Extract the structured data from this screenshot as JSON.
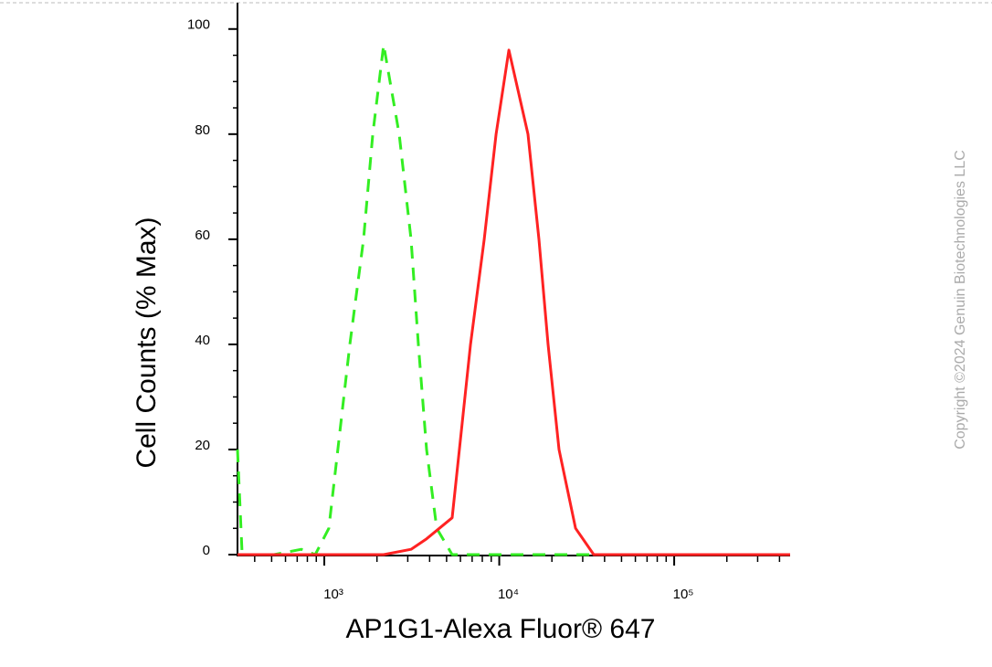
{
  "chart_data": {
    "type": "line",
    "xlabel": "AP1G1-Alexa Fluor® 647",
    "ylabel": "Cell Counts (% Max)",
    "watermark": "Copyright ©2024 Genuin Biotechnologies LLC",
    "xscale": "log",
    "xlim": [
      319,
      460000
    ],
    "ylim": [
      0,
      105
    ],
    "xticks": [
      {
        "value": 1000,
        "label": "10³"
      },
      {
        "value": 10000,
        "label": "10⁴"
      },
      {
        "value": 100000,
        "label": "10⁵"
      }
    ],
    "xminor_ticks": [
      400,
      500,
      600,
      700,
      800,
      900,
      2000,
      3000,
      4000,
      5000,
      6000,
      7000,
      8000,
      9000,
      20000,
      30000,
      40000,
      50000,
      60000,
      70000,
      80000,
      90000,
      200000,
      300000,
      400000
    ],
    "yticks": [
      0,
      20,
      40,
      60,
      80,
      100
    ],
    "yminor_ticks": [
      5,
      10,
      15,
      25,
      30,
      35,
      45,
      50,
      55,
      65,
      70,
      75,
      85,
      90,
      95
    ],
    "series": [
      {
        "color": "#33ee22",
        "linestyle": "dashed",
        "x": [
          319,
          339,
          516,
          739,
          887,
          1062,
          1400,
          1677,
          1892,
          2184,
          2678,
          3133,
          3448,
          3844,
          4389,
          5381,
          460000
        ],
        "values": [
          20,
          0,
          0,
          1,
          0,
          5,
          40,
          60,
          80,
          97,
          80,
          60,
          40,
          20,
          5,
          0,
          0
        ]
      },
      {
        "color": "#ff2222",
        "linestyle": "solid",
        "x": [
          319,
          2184,
          3133,
          3844,
          5381,
          6855,
          8206,
          9594,
          11357,
          14598,
          16866,
          19011,
          21962,
          27291,
          34691,
          460000
        ],
        "values": [
          0,
          0,
          1,
          3,
          7,
          40,
          60,
          80,
          96,
          80,
          60,
          40,
          20,
          5,
          0,
          0
        ]
      }
    ]
  }
}
